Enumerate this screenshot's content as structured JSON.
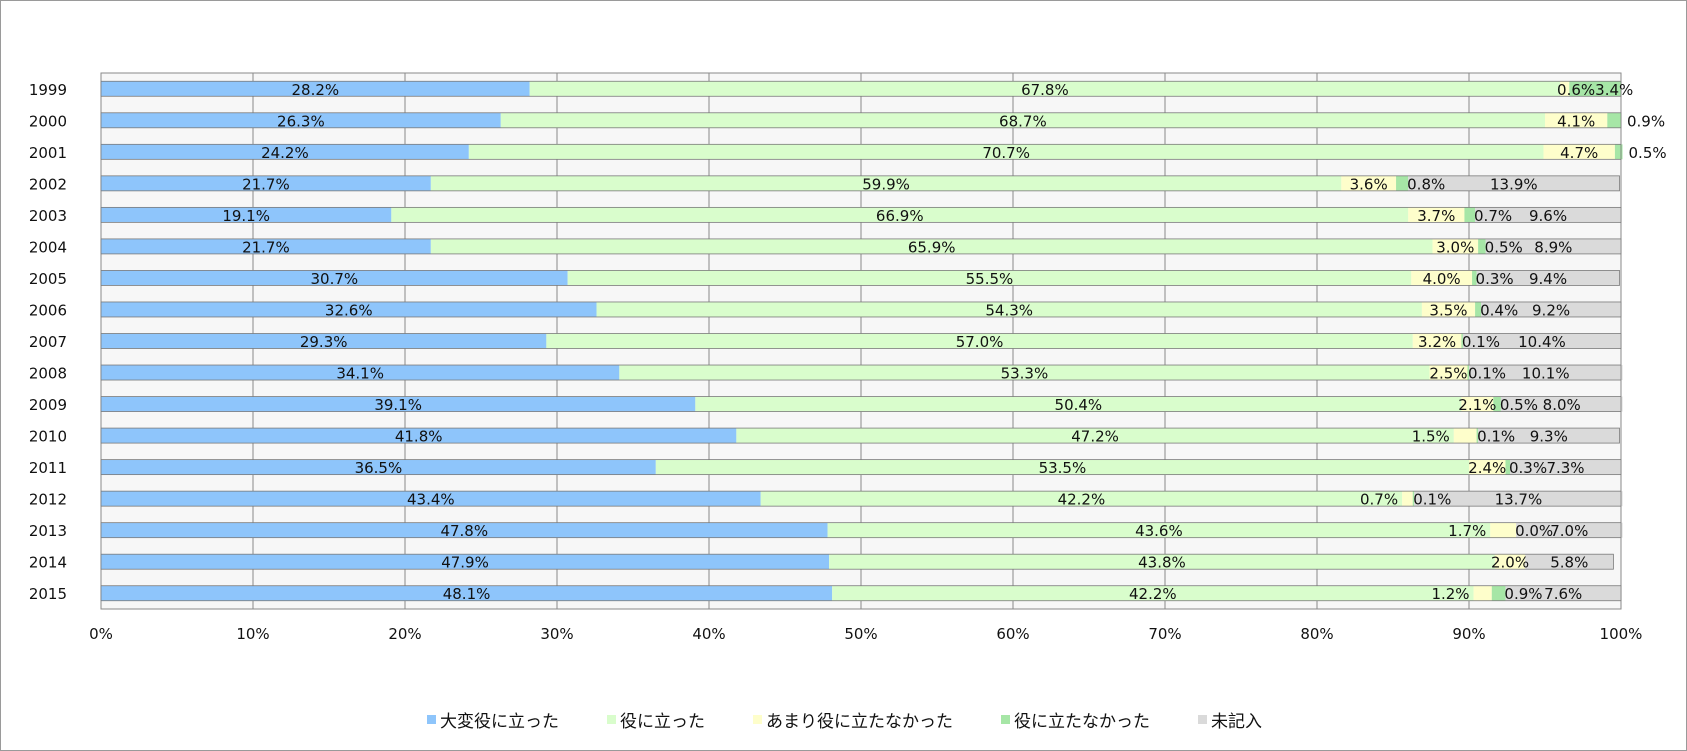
{
  "chart_data": {
    "type": "bar",
    "orientation": "horizontal",
    "stacked": "percent",
    "categories": [
      "1999",
      "2000",
      "2001",
      "2002",
      "2003",
      "2004",
      "2005",
      "2006",
      "2007",
      "2008",
      "2009",
      "2010",
      "2011",
      "2012",
      "2013",
      "2014",
      "2015"
    ],
    "series": [
      {
        "name": "大変役に立った",
        "color": "#8ec5fb",
        "values": [
          28.2,
          26.3,
          24.2,
          21.7,
          19.1,
          21.7,
          30.7,
          32.6,
          29.3,
          34.1,
          39.1,
          41.8,
          36.5,
          43.4,
          47.8,
          47.9,
          48.1
        ]
      },
      {
        "name": "役に立った",
        "color": "#d9fdcc",
        "values": [
          67.8,
          68.7,
          70.7,
          59.9,
          66.9,
          65.9,
          55.5,
          54.3,
          57.0,
          53.3,
          50.4,
          47.2,
          53.5,
          42.2,
          43.6,
          43.8,
          42.2
        ]
      },
      {
        "name": "あまり役に立たなかった",
        "color": "#fefecb",
        "values": [
          0.6,
          4.1,
          4.7,
          3.6,
          3.7,
          3.0,
          4.0,
          3.5,
          3.2,
          2.5,
          2.1,
          1.5,
          2.4,
          0.7,
          1.7,
          2.0,
          1.2
        ]
      },
      {
        "name": "役に立たなかった",
        "color": "#a6e6a6",
        "values": [
          3.4,
          0.9,
          0.5,
          0.8,
          0.7,
          0.5,
          0.3,
          0.4,
          0.1,
          0.1,
          0.5,
          0.1,
          0.3,
          0.1,
          0.0,
          0.0,
          0.9
        ]
      },
      {
        "name": "未記入",
        "color": "#dadada",
        "values": [
          0.0,
          0.0,
          0.0,
          13.9,
          9.6,
          8.9,
          9.4,
          9.2,
          10.4,
          10.1,
          8.0,
          9.3,
          7.3,
          13.7,
          7.0,
          5.8,
          7.6
        ]
      }
    ],
    "labels": [
      [
        "28.2%",
        "67.8%",
        null,
        "0.6%3.4%",
        null
      ],
      [
        "26.3%",
        "68.7%",
        "4.1%",
        "0.9%",
        null
      ],
      [
        "24.2%",
        "70.7%",
        "4.7%",
        "0.5%",
        null
      ],
      [
        "21.7%",
        "59.9%",
        "3.6%",
        "0.8%",
        "13.9%"
      ],
      [
        "19.1%",
        "66.9%",
        "3.7%",
        "0.7%",
        "9.6%"
      ],
      [
        "21.7%",
        "65.9%",
        "3.0%",
        "0.5%",
        "8.9%"
      ],
      [
        "30.7%",
        "55.5%",
        "4.0%",
        "0.3%",
        "9.4%"
      ],
      [
        "32.6%",
        "54.3%",
        "3.5%",
        "0.4%",
        "9.2%"
      ],
      [
        "29.3%",
        "57.0%",
        "3.2%",
        "0.1%",
        "10.4%"
      ],
      [
        "34.1%",
        "53.3%",
        "2.5%",
        "0.1%",
        "10.1%"
      ],
      [
        "39.1%",
        "50.4%",
        "2.1%",
        "0.5%",
        "8.0%"
      ],
      [
        "41.8%",
        "47.2%",
        "1.5%",
        "0.1%",
        "9.3%"
      ],
      [
        "36.5%",
        "53.5%",
        "2.4%",
        "0.3%",
        "7.3%"
      ],
      [
        "43.4%",
        "42.2%",
        "0.7%",
        "0.1%",
        "13.7%"
      ],
      [
        "47.8%",
        "43.6%",
        "1.7%",
        "0.0%",
        "7.0%"
      ],
      [
        "47.9%",
        "43.8%",
        "2.0%",
        null,
        "5.8%"
      ],
      [
        "48.1%",
        "42.2%",
        "1.2%",
        "0.9%",
        "7.6%"
      ]
    ],
    "x_ticks": [
      "0%",
      "10%",
      "20%",
      "30%",
      "40%",
      "50%",
      "60%",
      "70%",
      "80%",
      "90%",
      "100%"
    ],
    "xlim": [
      0,
      100
    ],
    "grid": true,
    "legend_position": "bottom"
  }
}
